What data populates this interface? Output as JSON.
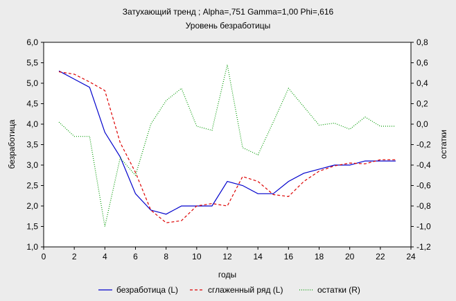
{
  "chart_data": {
    "type": "line",
    "title": "Затухающий тренд ; Alpha=,751 Gamma=1,00 Phi=,616",
    "subtitle": "Уровень безработицы",
    "xlabel": "годы",
    "ylabel_left": "безработица",
    "ylabel_right": "остатки",
    "xlim": [
      0,
      24
    ],
    "ylim_left": [
      1.0,
      6.0
    ],
    "ylim_right": [
      -1.2,
      0.8
    ],
    "x_ticks": [
      "0",
      "2",
      "4",
      "6",
      "8",
      "10",
      "12",
      "14",
      "16",
      "18",
      "20",
      "22",
      "24"
    ],
    "y_left_ticks": [
      "1,0",
      "1,5",
      "2,0",
      "2,5",
      "3,0",
      "3,5",
      "4,0",
      "4,5",
      "5,0",
      "5,5",
      "6,0"
    ],
    "y_right_ticks": [
      "-1,2",
      "-1,0",
      "-0,8",
      "-0,6",
      "-0,4",
      "-0,2",
      "0,0",
      "0,2",
      "0,4",
      "0,6",
      "0,8"
    ],
    "x": [
      1,
      2,
      3,
      4,
      5,
      6,
      7,
      8,
      9,
      10,
      11,
      12,
      13,
      14,
      15,
      16,
      17,
      18,
      19,
      20,
      21,
      22,
      23
    ],
    "legend_position": "bottom",
    "grid": false,
    "series": [
      {
        "name": "безработица (L)",
        "axis": "left",
        "color": "#0000cc",
        "style": "solid",
        "values": [
          5.3,
          5.1,
          4.9,
          3.8,
          3.2,
          2.3,
          1.9,
          1.8,
          2.0,
          2.0,
          2.0,
          2.6,
          2.5,
          2.3,
          2.3,
          2.6,
          2.8,
          2.9,
          3.0,
          3.0,
          3.1,
          3.1,
          3.1
        ]
      },
      {
        "name": "сглаженный ряд (L)",
        "axis": "left",
        "color": "#dd0000",
        "style": "dashed",
        "values": [
          5.28,
          5.22,
          5.03,
          4.82,
          3.55,
          2.82,
          1.9,
          1.59,
          1.64,
          2.0,
          2.06,
          2.0,
          2.72,
          2.6,
          2.28,
          2.23,
          2.6,
          2.85,
          2.98,
          3.05,
          3.03,
          3.13,
          3.13
        ]
      },
      {
        "name": "остатки (R)",
        "axis": "right",
        "color": "#009900",
        "style": "dotted",
        "values": [
          0.02,
          -0.12,
          -0.12,
          -1.0,
          -0.33,
          -0.5,
          0.0,
          0.23,
          0.35,
          -0.02,
          -0.06,
          0.58,
          -0.23,
          -0.3,
          0.02,
          0.35,
          0.17,
          -0.01,
          0.01,
          -0.05,
          0.07,
          -0.02,
          -0.02
        ]
      }
    ]
  }
}
